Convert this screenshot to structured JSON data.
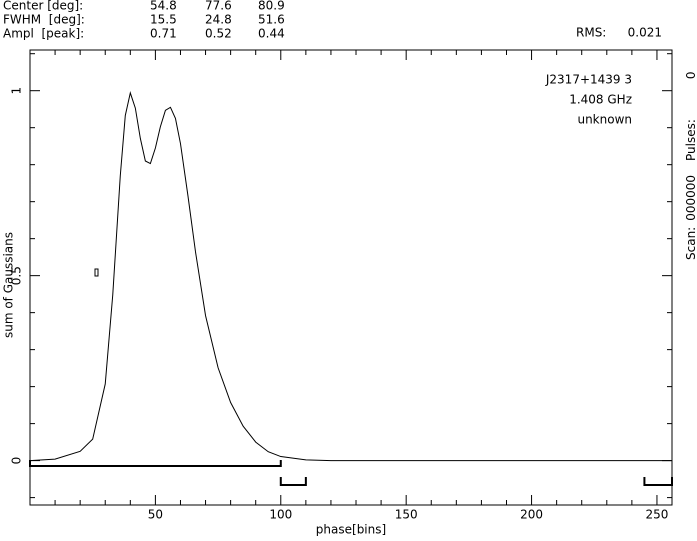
{
  "header": {
    "rows": [
      {
        "label": "Center [deg]:",
        "values": [
          54.8,
          77.6,
          80.9
        ]
      },
      {
        "label": "FWHM  [deg]:",
        "values": [
          15.5,
          24.8,
          51.6
        ]
      },
      {
        "label": "Ampl  [peak]:",
        "values": [
          0.71,
          0.52,
          0.44
        ]
      }
    ],
    "rms_label": "RMS:",
    "rms": 0.021
  },
  "side": {
    "scan_label": "Scan:",
    "scan": "000000",
    "pulses_label": "Pulses:",
    "pulses": 0
  },
  "chart_data": {
    "type": "line",
    "xlabel": "phase[bins]",
    "ylabel": "sum of Gaussians",
    "annotations": [
      "J2317+1439 3",
      "1.408 GHz",
      "unknown"
    ],
    "x": [
      0,
      10,
      20,
      25,
      30,
      33,
      36,
      38,
      40,
      42,
      44,
      46,
      48,
      50,
      52,
      54,
      56,
      58,
      60,
      63,
      66,
      70,
      75,
      80,
      85,
      90,
      95,
      100,
      110,
      120,
      256
    ],
    "series": [
      {
        "color": "#000000",
        "values": [
          0,
          0.004,
          0.025,
          0.058,
          0.207,
          0.448,
          0.77,
          0.933,
          0.994,
          0.953,
          0.871,
          0.81,
          0.803,
          0.845,
          0.903,
          0.947,
          0.955,
          0.925,
          0.857,
          0.715,
          0.564,
          0.392,
          0.251,
          0.157,
          0.093,
          0.05,
          0.024,
          0.011,
          0.002,
          0,
          0
        ]
      }
    ],
    "xlim": [
      0,
      256
    ],
    "ylim": [
      -0.12,
      1.11
    ],
    "xticks": [
      50,
      100,
      150,
      200,
      250
    ],
    "yticks": [
      0,
      0.5,
      1
    ],
    "xminorticks": [
      10,
      20,
      30,
      40,
      60,
      70,
      80,
      90,
      110,
      120,
      130,
      140,
      160,
      170,
      180,
      190,
      210,
      220,
      230,
      240
    ],
    "yminorticks": [
      -0.1,
      0.1,
      0.2,
      0.3,
      0.4,
      0.6,
      0.7,
      0.8,
      0.9,
      1.1
    ],
    "windows": [
      [
        0,
        100
      ],
      [
        100,
        110
      ],
      [
        245,
        256
      ]
    ]
  }
}
